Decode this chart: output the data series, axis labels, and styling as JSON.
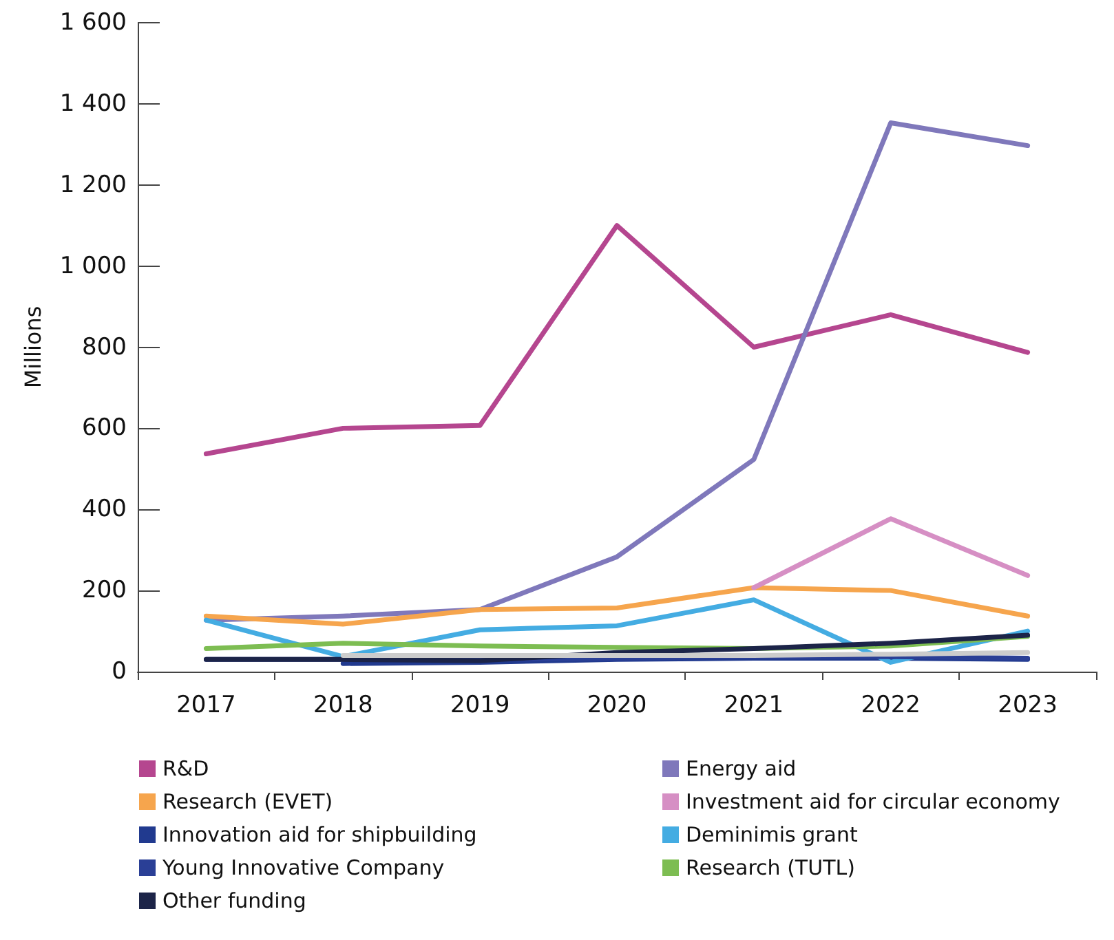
{
  "chart_data": {
    "type": "line",
    "ylabel": "Millions",
    "categories": [
      "2017",
      "2018",
      "2019",
      "2020",
      "2021",
      "2022",
      "2023"
    ],
    "ylim": [
      0,
      1600
    ],
    "yticks": [
      0,
      200,
      400,
      600,
      800,
      {
        "value": 1000,
        "label": "1 000"
      },
      {
        "value": 1200,
        "label": "1 200"
      },
      {
        "value": 1400,
        "label": "1 400"
      },
      {
        "value": 1600,
        "label": "1 600"
      }
    ],
    "grid": false,
    "legend": "bottom",
    "marker": "none",
    "line_style": "solid",
    "series": [
      {
        "name": "R&D",
        "color": "#b5468f",
        "values": [
          537,
          600,
          607,
          1100,
          800,
          880,
          787
        ]
      },
      {
        "name": "Energy aid",
        "color": "#7f78bb",
        "values": [
          127,
          137,
          153,
          283,
          523,
          1353,
          1297
        ]
      },
      {
        "name": "Research (EVET)",
        "color": "#f6a54d",
        "values": [
          137,
          117,
          153,
          157,
          207,
          200,
          137
        ]
      },
      {
        "name": "Investment aid for circular economy",
        "color": "#d68fc4",
        "values": [
          null,
          null,
          null,
          null,
          207,
          377,
          237
        ]
      },
      {
        "name": "Innovation aid for shipbuilding",
        "color": "#213a8f",
        "values": [
          null,
          20,
          23,
          30,
          33,
          33,
          30
        ]
      },
      {
        "name": "Deminimis grant",
        "color": "#44ace2",
        "values": [
          127,
          37,
          103,
          113,
          177,
          23,
          100
        ]
      },
      {
        "name": "Young Innovative Company",
        "color": "#2a3f96",
        "values": [
          30,
          30,
          30,
          33,
          37,
          37,
          33
        ]
      },
      {
        "name": "Research (TUTL)",
        "color": "#7dbd52",
        "values": [
          57,
          70,
          63,
          60,
          57,
          63,
          87
        ]
      },
      {
        "name": "Other funding",
        "color": "#1c2448",
        "values": [
          30,
          30,
          27,
          47,
          57,
          70,
          90
        ]
      },
      {
        "color": "#cccccc",
        "values": [
          null,
          40,
          40,
          40,
          40,
          43,
          47
        ]
      }
    ]
  }
}
